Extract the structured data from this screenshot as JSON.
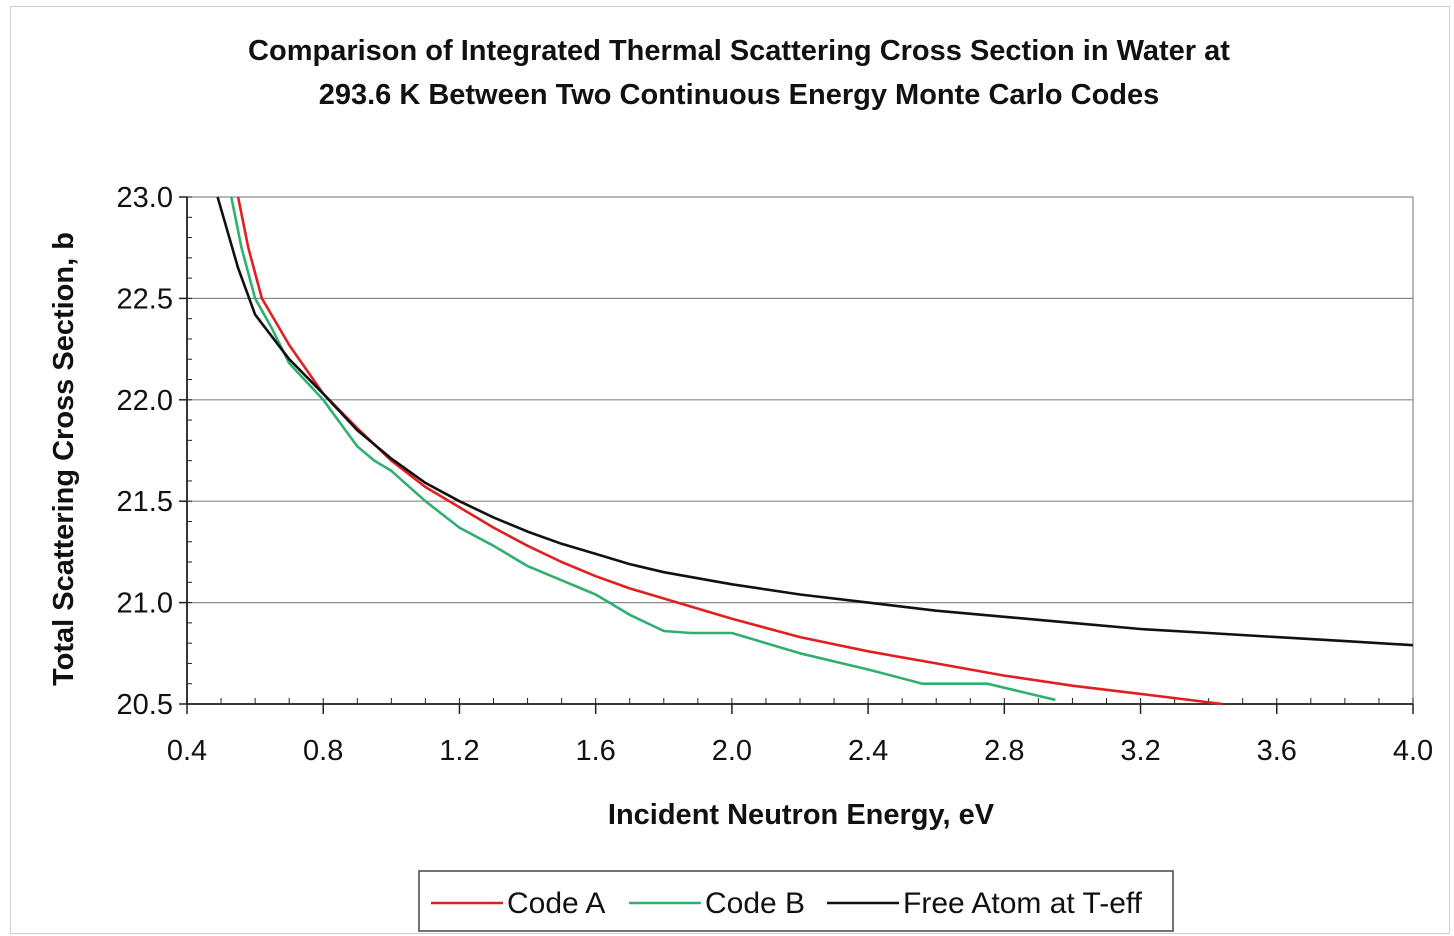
{
  "chart_data": {
    "type": "line",
    "title_lines": [
      "Comparison of Integrated Thermal Scattering Cross Section in Water at",
      "293.6 K Between Two Continuous Energy Monte Carlo Codes"
    ],
    "xlabel": "Incident Neutron Energy, eV",
    "ylabel": "Total Scattering Cross Section, b",
    "xlim": [
      0.4,
      4.0
    ],
    "ylim": [
      20.5,
      23.0
    ],
    "x_ticks": [
      "0.4",
      "0.8",
      "1.2",
      "1.6",
      "2.0",
      "2.4",
      "2.8",
      "3.2",
      "3.6",
      "4.0"
    ],
    "y_ticks": [
      "20.5",
      "21.0",
      "21.5",
      "22.0",
      "22.5",
      "23.0"
    ],
    "grid": "horizontal",
    "legend_position": "bottom",
    "series": [
      {
        "name": "Code A",
        "color": "#e02020",
        "x": [
          0.55,
          0.58,
          0.62,
          0.7,
          0.8,
          0.9,
          1.0,
          1.1,
          1.2,
          1.3,
          1.4,
          1.5,
          1.6,
          1.7,
          1.8,
          2.0,
          2.2,
          2.4,
          2.6,
          2.8,
          3.0,
          3.2,
          3.44
        ],
        "y": [
          23.0,
          22.75,
          22.5,
          22.27,
          22.03,
          21.86,
          21.7,
          21.57,
          21.47,
          21.37,
          21.28,
          21.2,
          21.13,
          21.07,
          21.02,
          20.92,
          20.83,
          20.76,
          20.7,
          20.64,
          20.59,
          20.55,
          20.5
        ]
      },
      {
        "name": "Code B",
        "color": "#30b070",
        "x": [
          0.53,
          0.56,
          0.6,
          0.65,
          0.7,
          0.8,
          0.9,
          0.95,
          1.0,
          1.1,
          1.2,
          1.3,
          1.4,
          1.5,
          1.6,
          1.7,
          1.8,
          1.88,
          2.0,
          2.2,
          2.4,
          2.56,
          2.75,
          2.95
        ],
        "y": [
          23.0,
          22.75,
          22.5,
          22.35,
          22.18,
          22.0,
          21.77,
          21.7,
          21.65,
          21.5,
          21.37,
          21.28,
          21.18,
          21.11,
          21.04,
          20.94,
          20.86,
          20.85,
          20.85,
          20.75,
          20.67,
          20.6,
          20.6,
          20.52
        ]
      },
      {
        "name": "Free Atom at T-eff",
        "color": "#111111",
        "x": [
          0.49,
          0.55,
          0.6,
          0.7,
          0.8,
          0.9,
          1.0,
          1.1,
          1.2,
          1.3,
          1.4,
          1.5,
          1.6,
          1.7,
          1.8,
          2.0,
          2.2,
          2.4,
          2.6,
          2.8,
          3.0,
          3.2,
          3.4,
          3.6,
          3.8,
          4.0
        ],
        "y": [
          23.0,
          22.65,
          22.42,
          22.2,
          22.03,
          21.85,
          21.71,
          21.59,
          21.5,
          21.42,
          21.35,
          21.29,
          21.24,
          21.19,
          21.15,
          21.09,
          21.04,
          21.0,
          20.96,
          20.93,
          20.9,
          20.87,
          20.85,
          20.83,
          20.81,
          20.79
        ]
      }
    ]
  }
}
